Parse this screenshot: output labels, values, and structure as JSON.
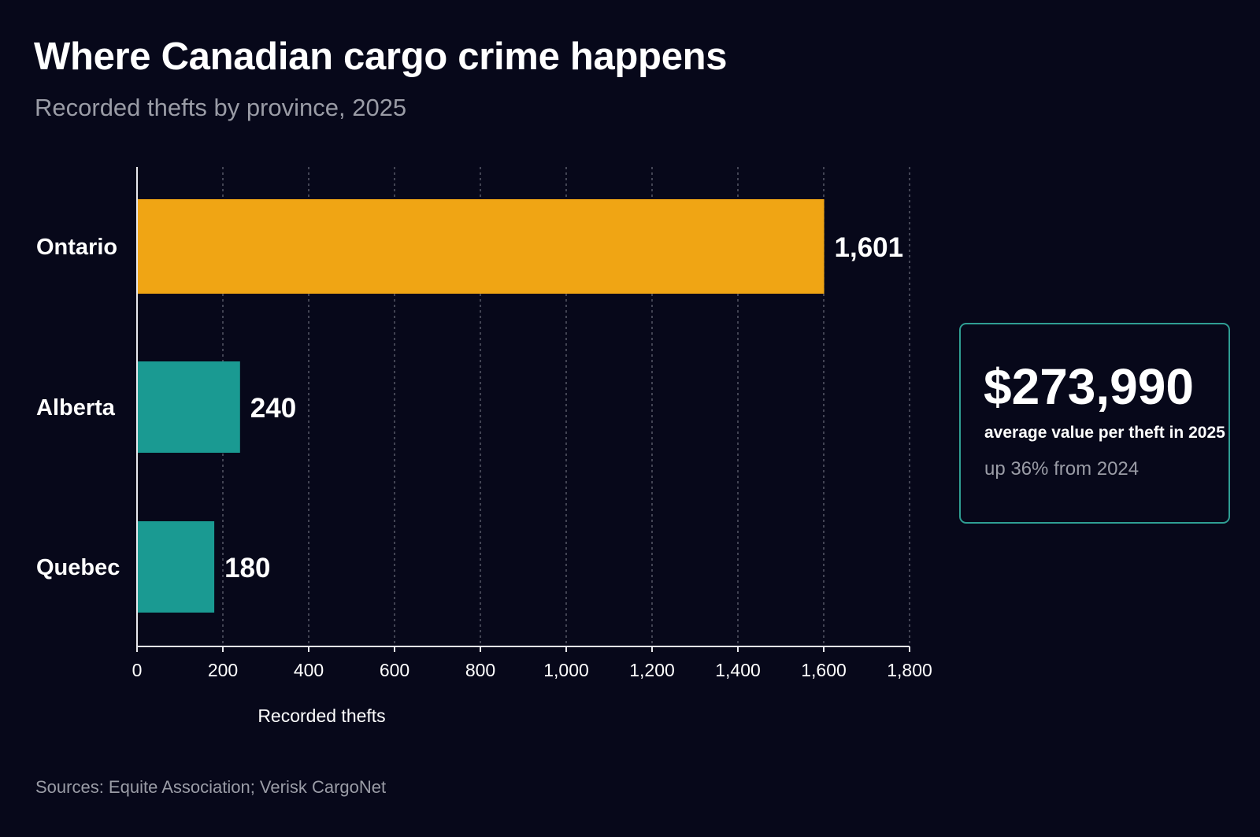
{
  "header": {
    "title": "Where Canadian cargo crime happens",
    "subtitle": "Recorded thefts by province, 2025"
  },
  "chart_data": {
    "type": "bar",
    "orientation": "horizontal",
    "categories": [
      "Ontario",
      "Alberta",
      "Quebec"
    ],
    "values": [
      1601,
      240,
      180
    ],
    "value_labels": [
      "1,601",
      "240",
      "180"
    ],
    "bar_colors": [
      "#f0a514",
      "#1a9a92",
      "#1a9a92"
    ],
    "xlabel": "Recorded thefts",
    "ylabel": "",
    "xlim": [
      0,
      1800
    ],
    "x_ticks": [
      0,
      200,
      400,
      600,
      800,
      1000,
      1200,
      1400,
      1600,
      1800
    ],
    "x_tick_labels": [
      "0",
      "200",
      "400",
      "600",
      "800",
      "1,000",
      "1,200",
      "1,400",
      "1,600",
      "1,800"
    ],
    "grid": "vertical dotted",
    "title": "Where Canadian cargo crime happens",
    "subtitle": "Recorded thefts by province, 2025"
  },
  "callout": {
    "value": "$273,990",
    "label": "average value per theft in 2025",
    "change": "up 36% from 2024",
    "border_color": "#2f9e93"
  },
  "footer": {
    "source": "Sources: Equite Association; Verisk CargoNet"
  },
  "colors": {
    "background": "#07081a",
    "accent_primary": "#f0a514",
    "accent_secondary": "#1a9a92",
    "muted_text": "#9a9ca6"
  }
}
